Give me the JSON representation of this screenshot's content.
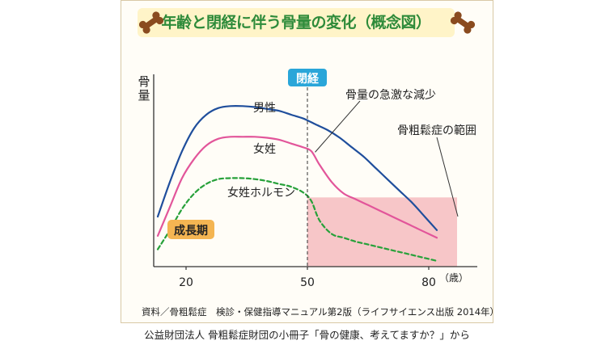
{
  "title": "年齢と閉経に伴う骨量の変化（概念図）",
  "source": "資料／骨粗鬆症　検診・保健指導マニュアル第2版（ライフサイエンス出版 2014年）",
  "caption": "公益財団法人 骨粗鬆症財団の小冊子「骨の健康、考えてますか？」から",
  "chart_data": {
    "type": "line",
    "title": "年齢と閉経に伴う骨量の変化（概念図）",
    "xlabel": "（歳）",
    "ylabel": "骨量",
    "xlim": [
      12,
      92
    ],
    "ylim": [
      0,
      100
    ],
    "x_ticks": [
      20,
      50,
      80
    ],
    "x_tick_labels": [
      "20",
      "50",
      "80"
    ],
    "grid": false,
    "series": [
      {
        "name": "男性",
        "color": "#1f4e9c",
        "style": "solid",
        "x": [
          13,
          16,
          19,
          22,
          25,
          28,
          31,
          34,
          37,
          40,
          43,
          46,
          49,
          52,
          55,
          58,
          61,
          64,
          67,
          70,
          73,
          76,
          79,
          82
        ],
        "y": [
          26,
          44,
          60,
          72,
          79,
          82.5,
          83.5,
          83.5,
          83,
          82,
          81,
          79,
          77,
          74,
          71,
          67,
          62,
          57,
          51,
          45,
          39,
          33,
          26,
          19
        ]
      },
      {
        "name": "女姓",
        "color": "#e2559a",
        "style": "solid",
        "x": [
          13,
          16,
          19,
          22,
          25,
          28,
          31,
          34,
          37,
          40,
          43,
          46,
          49,
          51,
          53,
          56,
          59,
          62,
          65,
          68,
          71,
          74,
          77,
          80,
          82
        ],
        "y": [
          16,
          31,
          46,
          56,
          63,
          66.5,
          67.5,
          67.5,
          67.5,
          67,
          66,
          64,
          62,
          60,
          53,
          44,
          38,
          35,
          32,
          29,
          26,
          23,
          20,
          17,
          15
        ]
      },
      {
        "name": "女姓ホルモン",
        "color": "#27a13a",
        "style": "dashed",
        "x": [
          13,
          16,
          19,
          22,
          25,
          28,
          31,
          34,
          37,
          40,
          43,
          46,
          49,
          51,
          53,
          56,
          59,
          62,
          65,
          68,
          71,
          74,
          77,
          80,
          82
        ],
        "y": [
          9,
          19,
          30,
          38,
          43,
          45.5,
          46,
          46,
          45.5,
          44.5,
          43,
          41.5,
          38.5,
          34,
          24,
          17,
          15,
          13,
          11.5,
          10,
          8.5,
          7,
          5.5,
          4,
          3
        ]
      }
    ],
    "annotations": [
      {
        "text": "閉経",
        "x": 50,
        "type": "vertical-dashed-line",
        "color": "#2aa6d9"
      },
      {
        "text": "骨量の急激な減少",
        "target_series": "女姓",
        "target_x": 51.5
      },
      {
        "text": "骨粗鬆症の範囲",
        "region": {
          "x": [
            50,
            87
          ],
          "y": [
            0,
            36
          ]
        },
        "color": "#f7c6c8"
      },
      {
        "text": "成長期",
        "x_range": [
          13,
          22
        ],
        "color": "#f4b552"
      }
    ]
  },
  "colors": {
    "title": "#2e8b3a",
    "title_bg": "#fff4c8",
    "frame_bg": "#fffdf7",
    "menopause_badge": "#2aa6d9",
    "growth_badge": "#f4b552",
    "osteoporosis_region": "#f7c6c8"
  },
  "icons": [
    "bone-icon",
    "bone-icon"
  ]
}
